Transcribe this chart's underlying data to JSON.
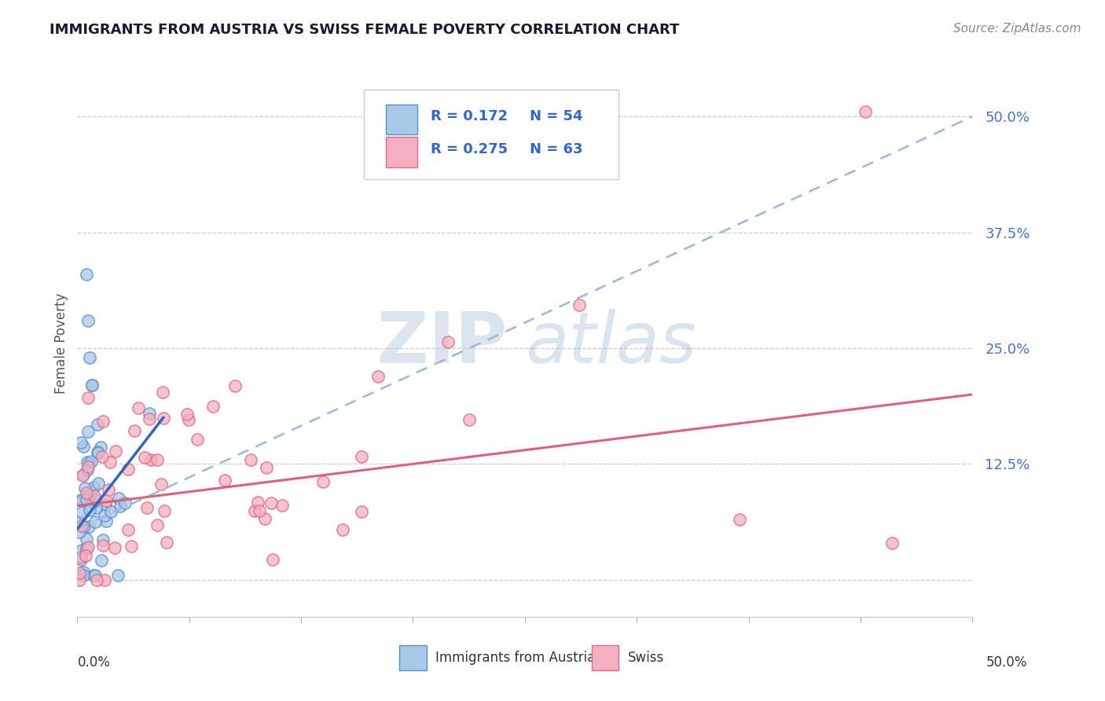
{
  "title": "IMMIGRANTS FROM AUSTRIA VS SWISS FEMALE POVERTY CORRELATION CHART",
  "source_text": "Source: ZipAtlas.com",
  "ylabel": "Female Poverty",
  "xlim": [
    0.0,
    0.5
  ],
  "ylim": [
    -0.04,
    0.55
  ],
  "ytick_vals": [
    0.0,
    0.125,
    0.25,
    0.375,
    0.5
  ],
  "ytick_labels": [
    "",
    "12.5%",
    "25.0%",
    "37.5%",
    "50.0%"
  ],
  "legend_R1": "R = 0.172",
  "legend_N1": "N = 54",
  "legend_R2": "R = 0.275",
  "legend_N2": "N = 63",
  "color_austria_fill": "#a8c8e8",
  "color_austria_edge": "#5590c8",
  "color_swiss_fill": "#f4b0c0",
  "color_swiss_edge": "#e06888",
  "color_austria_trend_solid": "#3366bb",
  "color_austria_trend_dash": "#99b8dd",
  "color_swiss_trend": "#e0607a",
  "watermark_zip_color": "#c8d4e4",
  "watermark_atlas_color": "#7aabe0",
  "austria_solid_trend": [
    0.0,
    0.055,
    0.048,
    0.175
  ],
  "austria_dash_trend": [
    0.0,
    0.055,
    0.5,
    0.5
  ],
  "swiss_trend": [
    0.0,
    0.08,
    0.5,
    0.2
  ]
}
